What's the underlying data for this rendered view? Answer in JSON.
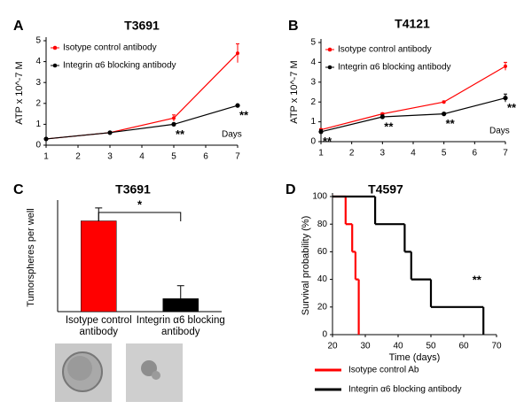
{
  "chart_data": [
    {
      "type": "line",
      "panel": "A",
      "title": "T3691",
      "xlabel": "Days",
      "ylabel": "ATP x 10^-7 M",
      "x": [
        1,
        3,
        5,
        7
      ],
      "xlim": [
        1,
        7
      ],
      "xticks": [
        1,
        2,
        3,
        4,
        5,
        6,
        7
      ],
      "ylim": [
        0,
        5
      ],
      "yticks": [
        0,
        1,
        2,
        3,
        4,
        5
      ],
      "series": [
        {
          "name": "Isotype control antibody",
          "color": "#ff0000",
          "values": [
            0.3,
            0.6,
            1.3,
            4.4
          ],
          "errors": [
            0.05,
            0.05,
            0.15,
            0.45
          ]
        },
        {
          "name": "Integrin α6 blocking antibody",
          "color": "#000000",
          "values": [
            0.3,
            0.6,
            1.0,
            1.9
          ],
          "errors": [
            0.05,
            0.05,
            0.05,
            0.05
          ]
        }
      ],
      "annotations": [
        {
          "text": "**",
          "x": 5
        },
        {
          "text": "**",
          "x": 7
        }
      ]
    },
    {
      "type": "line",
      "panel": "B",
      "title": "T4121",
      "xlabel": "Days",
      "ylabel": "ATP x 10^-7 M",
      "x": [
        1,
        3,
        5,
        7
      ],
      "xlim": [
        1,
        7
      ],
      "xticks": [
        1,
        2,
        3,
        4,
        5,
        6,
        7
      ],
      "ylim": [
        0,
        5
      ],
      "yticks": [
        0,
        1,
        2,
        3,
        4,
        5
      ],
      "series": [
        {
          "name": "Isotype control antibody",
          "color": "#ff0000",
          "values": [
            0.6,
            1.4,
            2.0,
            3.8
          ],
          "errors": [
            0.05,
            0.05,
            0.05,
            0.2
          ]
        },
        {
          "name": "Integrin α6 blocking antibody",
          "color": "#000000",
          "values": [
            0.5,
            1.25,
            1.4,
            2.2
          ],
          "errors": [
            0.1,
            0.1,
            0.05,
            0.2
          ]
        }
      ],
      "annotations": [
        {
          "text": "**",
          "x": 1
        },
        {
          "text": "**",
          "x": 3
        },
        {
          "text": "**",
          "x": 5
        },
        {
          "text": "**",
          "x": 7
        }
      ]
    },
    {
      "type": "bar",
      "panel": "C",
      "title": "T3691",
      "ylabel": "Tumorspheres per well",
      "categories": [
        "Isotype control antibody",
        "Integrin α6 blocking antibody"
      ],
      "values": [
        4.2,
        0.6
      ],
      "errors": [
        0.6,
        0.6
      ],
      "colors": [
        "#ff0000",
        "#000000"
      ],
      "ylim": [
        0,
        5
      ],
      "annotations": [
        {
          "text": "*"
        }
      ]
    },
    {
      "type": "step",
      "panel": "D",
      "title": "T4597",
      "xlabel": "Time (days)",
      "ylabel": "Survival probability (%)",
      "xlim": [
        20,
        70
      ],
      "xticks": [
        20,
        30,
        40,
        50,
        60,
        70
      ],
      "ylim": [
        0,
        100
      ],
      "yticks": [
        0,
        20,
        40,
        60,
        80,
        100
      ],
      "series": [
        {
          "name": "Isotype control Ab",
          "color": "#ff0000",
          "x": [
            20,
            24,
            26,
            27,
            28
          ],
          "values": [
            100,
            80,
            60,
            40,
            0
          ]
        },
        {
          "name": "Integrin α6 blocking antibody",
          "color": "#000000",
          "x": [
            20,
            33,
            42,
            44,
            50,
            66
          ],
          "values": [
            100,
            80,
            60,
            40,
            20,
            0
          ]
        }
      ],
      "annotations": [
        {
          "text": "**",
          "x": 64
        }
      ]
    }
  ]
}
